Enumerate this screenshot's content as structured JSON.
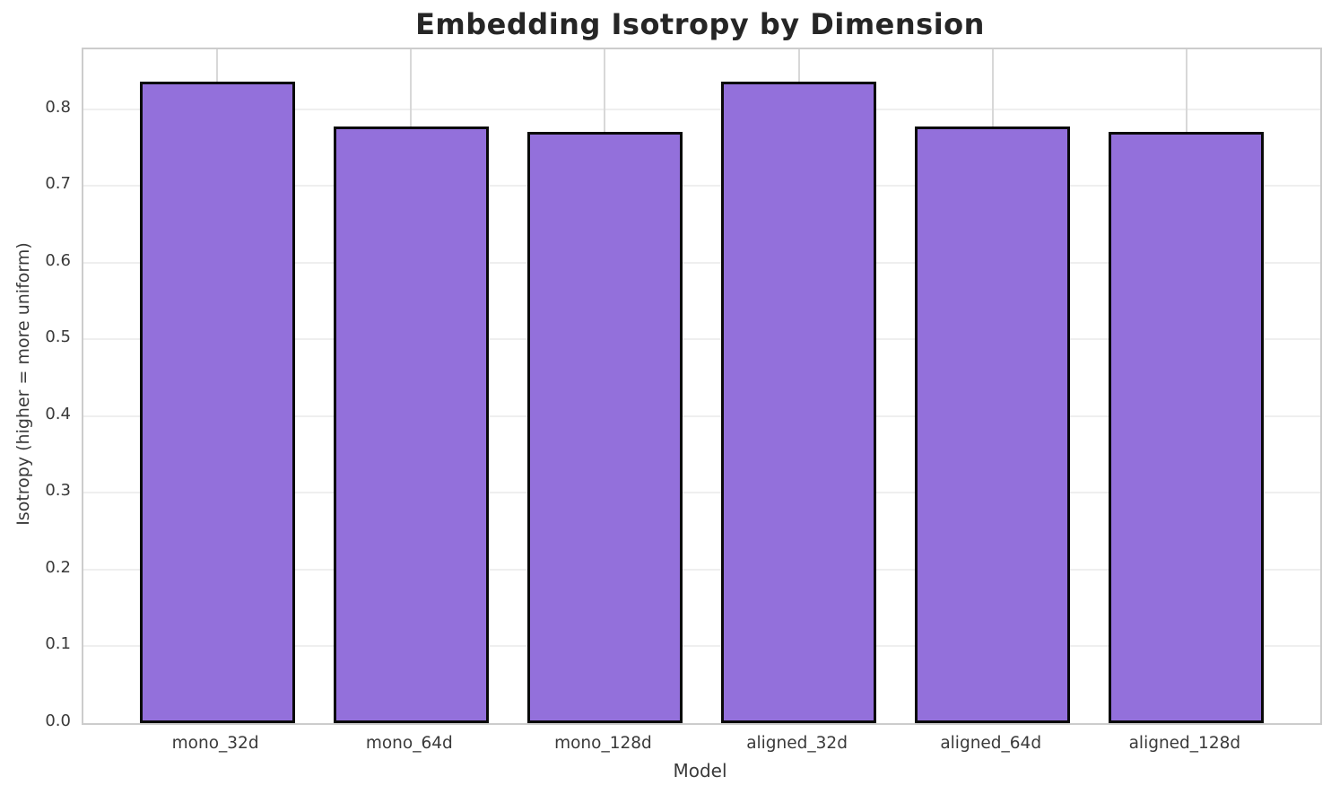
{
  "chart_data": {
    "type": "bar",
    "title": "Embedding Isotropy by Dimension",
    "xlabel": "Model",
    "ylabel": "Isotropy (higher = more uniform)",
    "categories": [
      "mono_32d",
      "mono_64d",
      "mono_128d",
      "aligned_32d",
      "aligned_64d",
      "aligned_128d"
    ],
    "values": [
      0.836,
      0.778,
      0.77,
      0.836,
      0.778,
      0.77
    ],
    "ylim": [
      0.0,
      0.878
    ],
    "yticks": [
      0.0,
      0.1,
      0.2,
      0.3,
      0.4,
      0.5,
      0.6,
      0.7,
      0.8
    ],
    "ytick_labels": [
      "0.0",
      "0.1",
      "0.2",
      "0.3",
      "0.4",
      "0.5",
      "0.6",
      "0.7",
      "0.8"
    ],
    "grid": "both",
    "legend": "none",
    "bar_color": "#9370DB",
    "bar_edge_color": "#0a0a0a",
    "gridline_color_horizontal": "#efefef",
    "gridline_color_vertical": "#d8d8d8",
    "spine_color": "#cccccc",
    "text_color": "#3a3a3a",
    "title_color": "#262626",
    "background": "#ffffff"
  }
}
